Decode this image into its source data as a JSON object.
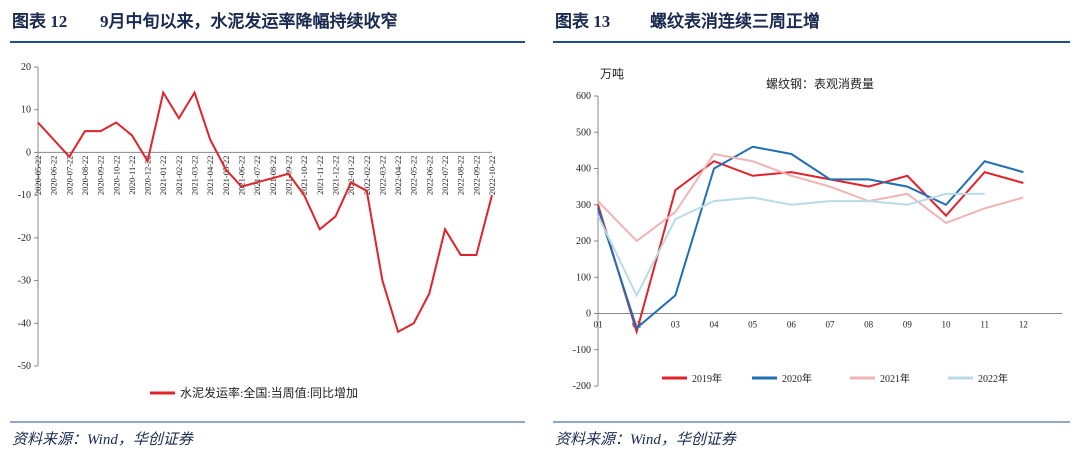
{
  "chart_data": [
    {
      "type": "line",
      "figure_label": "图表 12",
      "title": "9月中旬以来，水泥发运率降幅持续收窄",
      "source": "资料来源：Wind，华创证券",
      "categories": [
        "2020-05-22",
        "2020-06-22",
        "2020-07-22",
        "2020-08-22",
        "2020-09-22",
        "2020-10-22",
        "2020-11-22",
        "2020-12-22",
        "2021-01-22",
        "2021-02-22",
        "2021-03-22",
        "2021-04-22",
        "2021-05-22",
        "2021-06-22",
        "2021-07-22",
        "2021-08-22",
        "2021-09-22",
        "2021-10-22",
        "2021-11-22",
        "2021-12-22",
        "2022-01-22",
        "2022-02-22",
        "2022-03-22",
        "2022-04-22",
        "2022-05-22",
        "2022-06-22",
        "2022-07-22",
        "2022-08-22",
        "2022-09-22",
        "2022-10-22"
      ],
      "series": [
        {
          "name": "水泥发运率:全国:当周值:同比增加",
          "color": "#e0232b",
          "values": [
            7,
            3,
            -1,
            5,
            5,
            7,
            4,
            -2,
            14,
            8,
            14,
            3,
            -4,
            -8,
            -7,
            -6,
            -5,
            -10,
            -18,
            -15,
            -7,
            -9,
            -30,
            -42,
            -40,
            -33,
            -18,
            -24,
            -24,
            -10
          ]
        }
      ],
      "ylim": [
        -50,
        20
      ],
      "yticks": [
        -50,
        -40,
        -30,
        -20,
        -10,
        0,
        10,
        20
      ]
    },
    {
      "type": "line",
      "figure_label": "图表 13",
      "title": "螺纹表消连续三周正增",
      "source": "资料来源：Wind，华创证券",
      "ylabel": "万吨",
      "subtitle": "螺纹钢：表观消费量",
      "categories": [
        "01",
        "02",
        "03",
        "04",
        "05",
        "06",
        "07",
        "08",
        "09",
        "10",
        "11",
        "12"
      ],
      "series": [
        {
          "name": "2019年",
          "color": "#e0232b",
          "values": [
            300,
            -50,
            340,
            420,
            380,
            390,
            370,
            350,
            380,
            270,
            390,
            360
          ]
        },
        {
          "name": "2020年",
          "color": "#1f6fb5",
          "values": [
            290,
            -40,
            50,
            400,
            460,
            440,
            370,
            370,
            350,
            300,
            420,
            390
          ]
        },
        {
          "name": "2021年",
          "color": "#f0b4b4",
          "values": [
            310,
            200,
            280,
            440,
            420,
            380,
            350,
            310,
            330,
            250,
            290,
            320
          ]
        },
        {
          "name": "2022年",
          "color": "#b9dbe8",
          "values": [
            270,
            50,
            260,
            310,
            320,
            300,
            310,
            310,
            300,
            330,
            330,
            null
          ]
        }
      ],
      "ylim": [
        -200,
        600
      ],
      "yticks": [
        -200,
        -100,
        0,
        100,
        200,
        300,
        400,
        500,
        600
      ]
    }
  ]
}
